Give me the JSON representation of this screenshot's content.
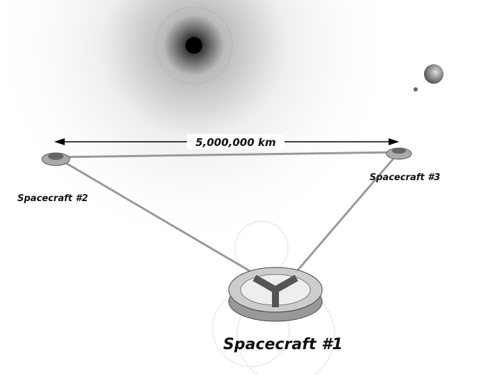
{
  "distance_label": "5,000,000 km",
  "nodes": [
    {
      "label": "Spacecraft #1"
    },
    {
      "label": "Spacecraft #2"
    },
    {
      "label": "Spacecraft #3"
    }
  ]
}
